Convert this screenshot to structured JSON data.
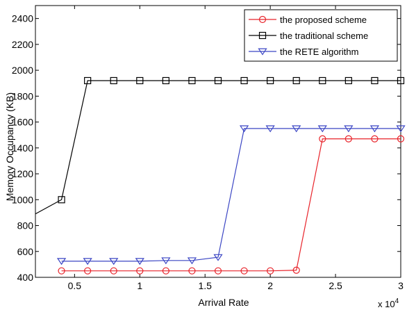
{
  "chart_data": {
    "type": "line",
    "xlabel": "Arrival Rate",
    "ylabel": "Memory Occupancy (KB)",
    "x_multiplier": "x 10",
    "x_multiplier_exp": "4",
    "xlim": [
      0.2,
      3
    ],
    "ylim": [
      400,
      2500
    ],
    "xticks": [
      0.5,
      1,
      1.5,
      2,
      2.5,
      3
    ],
    "xtick_labels": [
      "0.5",
      "1",
      "1.5",
      "2",
      "2.5",
      "3"
    ],
    "yticks": [
      400,
      600,
      800,
      1000,
      1200,
      1400,
      1600,
      1800,
      2000,
      2200,
      2400
    ],
    "ytick_labels": [
      "400",
      "600",
      "800",
      "1000",
      "1200",
      "1400",
      "1600",
      "1800",
      "2000",
      "2200",
      "2400"
    ],
    "legend_position": "top-right",
    "grid": false,
    "series": [
      {
        "name": "the proposed scheme",
        "color": "#e8232a",
        "marker": "circle",
        "x": [
          0.4,
          0.6,
          0.8,
          1.0,
          1.2,
          1.4,
          1.6,
          1.8,
          2.0,
          2.2,
          2.4,
          2.6,
          2.8,
          3.0
        ],
        "y": [
          450,
          450,
          450,
          450,
          450,
          450,
          450,
          450,
          450,
          455,
          1470,
          1470,
          1470,
          1470
        ]
      },
      {
        "name": "the traditional scheme",
        "color": "#000000",
        "marker": "square",
        "line_start": [
          0.2,
          890
        ],
        "x": [
          0.4,
          0.6,
          0.8,
          1.0,
          1.2,
          1.4,
          1.6,
          1.8,
          2.0,
          2.2,
          2.4,
          2.6,
          2.8,
          3.0
        ],
        "y": [
          1000,
          1920,
          1920,
          1920,
          1920,
          1920,
          1920,
          1920,
          1920,
          1920,
          1920,
          1920,
          1920,
          1920
        ]
      },
      {
        "name": "the RETE algorithm",
        "color": "#3b46c4",
        "marker": "triangle-down",
        "x": [
          0.4,
          0.6,
          0.8,
          1.0,
          1.2,
          1.4,
          1.6,
          1.8,
          2.0,
          2.2,
          2.4,
          2.6,
          2.8,
          3.0
        ],
        "y": [
          525,
          525,
          525,
          525,
          530,
          530,
          555,
          1550,
          1550,
          1550,
          1550,
          1550,
          1550,
          1550
        ]
      }
    ]
  }
}
